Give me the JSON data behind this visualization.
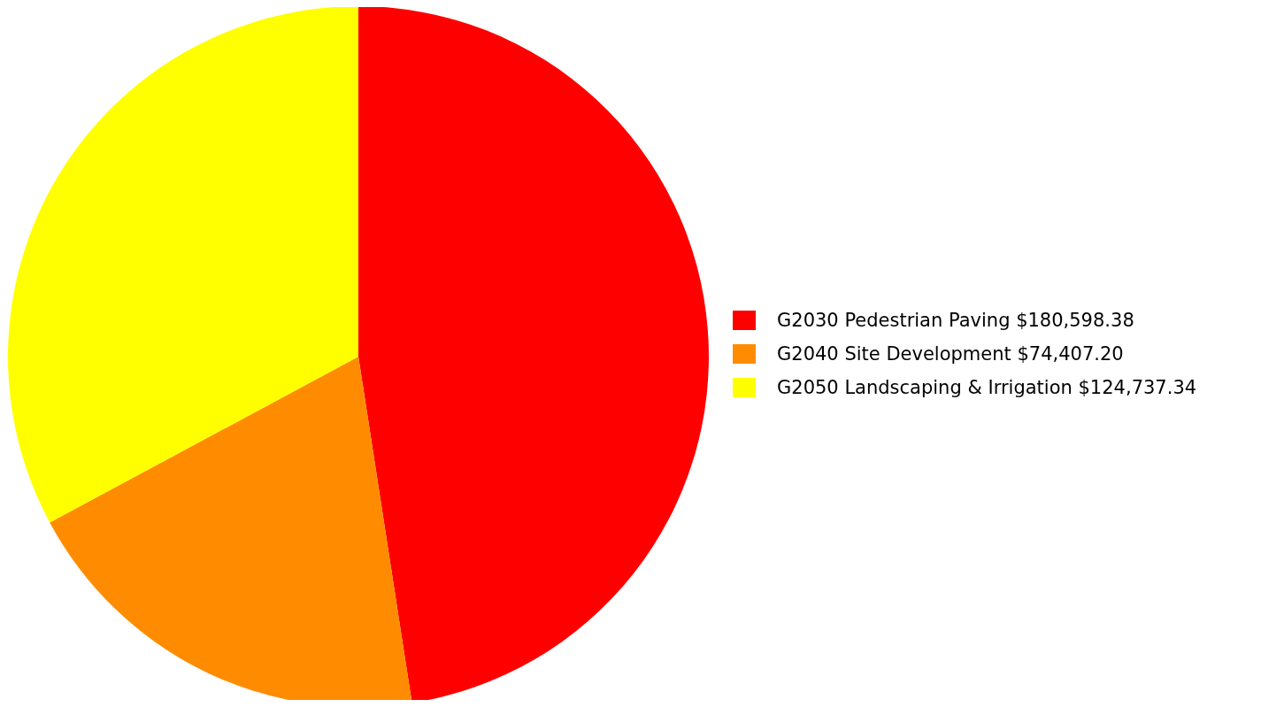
{
  "chart_data": {
    "type": "pie",
    "categories": [
      "G2030 Pedestrian Paving",
      "G2040 Site Development",
      "G2050 Landscaping & Irrigation"
    ],
    "values": [
      180598.38,
      74407.2,
      124737.34
    ],
    "value_labels": [
      "$180,598.38",
      "$74,407.20",
      "$124,737.34"
    ],
    "colors": [
      "#ff0000",
      "#ff8c00",
      "#ffff00"
    ],
    "legend": "right"
  }
}
